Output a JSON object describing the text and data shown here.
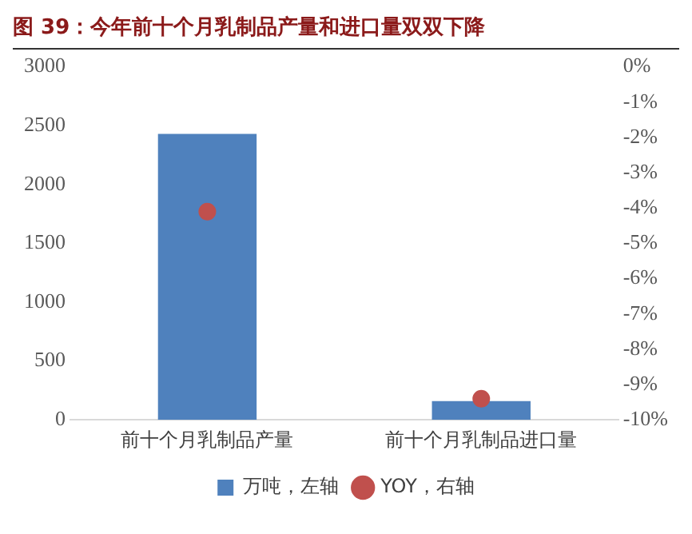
{
  "chart_data": {
    "type": "bar",
    "title": "图 39：今年前十个月乳制品产量和进口量双双下降",
    "categories": [
      "前十个月乳制品产量",
      "前十个月乳制品进口量"
    ],
    "series": [
      {
        "name": "万吨，左轴",
        "type": "bar",
        "color": "#4f81bd",
        "values": [
          2430,
          160
        ]
      },
      {
        "name": "YOY，右轴",
        "type": "scatter",
        "axis": "y2",
        "color": "#c0504d",
        "values": [
          -4.1,
          -9.4
        ],
        "x": [
          "前十个月乳制品产量",
          "前十个月乳制品进口量"
        ]
      }
    ],
    "ylim": [
      0,
      3000
    ],
    "yticks": [
      0,
      500,
      1000,
      1500,
      2000,
      2500,
      3000
    ],
    "y2lim": [
      -10,
      0
    ],
    "y2ticks": [
      {
        "value": 0,
        "label": "0%"
      },
      {
        "value": -1,
        "label": "-1%"
      },
      {
        "value": -2,
        "label": "-2%"
      },
      {
        "value": -3,
        "label": "-3%"
      },
      {
        "value": -4,
        "label": "-4%"
      },
      {
        "value": -5,
        "label": "-5%"
      },
      {
        "value": -6,
        "label": "-6%"
      },
      {
        "value": -7,
        "label": "-7%"
      },
      {
        "value": -8,
        "label": "-8%"
      },
      {
        "value": -9,
        "label": "-9%"
      },
      {
        "value": -10,
        "label": "-10%"
      }
    ],
    "marker": "circle",
    "legend": "bottom"
  }
}
